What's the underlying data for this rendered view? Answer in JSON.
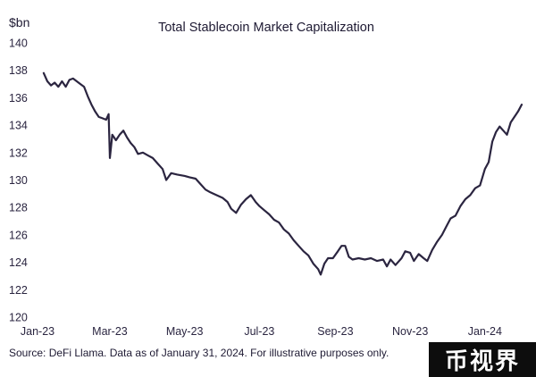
{
  "chart_data": {
    "type": "line",
    "title": "Total Stablecoin Market Capitalization",
    "unit_label": "$bn",
    "ylim": [
      120,
      140
    ],
    "yticks": [
      120,
      122,
      124,
      126,
      128,
      130,
      132,
      134,
      136,
      138,
      140
    ],
    "xticks": [
      "Jan-23",
      "Mar-23",
      "May-23",
      "Jul-23",
      "Sep-23",
      "Nov-23",
      "Jan-24"
    ],
    "xtick_dates": [
      "2023-01-01",
      "2023-03-01",
      "2023-05-01",
      "2023-07-01",
      "2023-09-01",
      "2023-11-01",
      "2024-01-01"
    ],
    "xlim": [
      "2023-01-01",
      "2024-01-31"
    ],
    "grid": false,
    "line_color": "#2b2540",
    "series": [
      {
        "values": [
          [
            "2023-01-06",
            137.8
          ],
          [
            "2023-01-09",
            137.2
          ],
          [
            "2023-01-12",
            136.9
          ],
          [
            "2023-01-15",
            137.1
          ],
          [
            "2023-01-18",
            136.8
          ],
          [
            "2023-01-21",
            137.2
          ],
          [
            "2023-01-24",
            136.8
          ],
          [
            "2023-01-27",
            137.3
          ],
          [
            "2023-01-30",
            137.4
          ],
          [
            "2023-02-02",
            137.2
          ],
          [
            "2023-02-05",
            137.0
          ],
          [
            "2023-02-08",
            136.8
          ],
          [
            "2023-02-11",
            136.1
          ],
          [
            "2023-02-14",
            135.5
          ],
          [
            "2023-02-17",
            135.0
          ],
          [
            "2023-02-20",
            134.6
          ],
          [
            "2023-02-23",
            134.5
          ],
          [
            "2023-02-26",
            134.4
          ],
          [
            "2023-02-28",
            134.8
          ],
          [
            "2023-03-01",
            131.6
          ],
          [
            "2023-03-03",
            133.3
          ],
          [
            "2023-03-06",
            132.9
          ],
          [
            "2023-03-09",
            133.3
          ],
          [
            "2023-03-12",
            133.6
          ],
          [
            "2023-03-15",
            133.1
          ],
          [
            "2023-03-18",
            132.7
          ],
          [
            "2023-03-21",
            132.4
          ],
          [
            "2023-03-24",
            131.9
          ],
          [
            "2023-03-28",
            132.0
          ],
          [
            "2023-04-01",
            131.8
          ],
          [
            "2023-04-05",
            131.6
          ],
          [
            "2023-04-09",
            131.2
          ],
          [
            "2023-04-13",
            130.8
          ],
          [
            "2023-04-16",
            130.0
          ],
          [
            "2023-04-20",
            130.5
          ],
          [
            "2023-04-25",
            130.4
          ],
          [
            "2023-05-01",
            130.3
          ],
          [
            "2023-05-05",
            130.2
          ],
          [
            "2023-05-10",
            130.1
          ],
          [
            "2023-05-14",
            129.7
          ],
          [
            "2023-05-18",
            129.3
          ],
          [
            "2023-05-22",
            129.1
          ],
          [
            "2023-05-27",
            128.9
          ],
          [
            "2023-06-01",
            128.7
          ],
          [
            "2023-06-05",
            128.4
          ],
          [
            "2023-06-08",
            127.9
          ],
          [
            "2023-06-12",
            127.6
          ],
          [
            "2023-06-16",
            128.2
          ],
          [
            "2023-06-20",
            128.6
          ],
          [
            "2023-06-24",
            128.9
          ],
          [
            "2023-06-28",
            128.4
          ],
          [
            "2023-07-01",
            128.1
          ],
          [
            "2023-07-05",
            127.8
          ],
          [
            "2023-07-09",
            127.5
          ],
          [
            "2023-07-13",
            127.1
          ],
          [
            "2023-07-17",
            126.9
          ],
          [
            "2023-07-21",
            126.4
          ],
          [
            "2023-07-25",
            126.1
          ],
          [
            "2023-07-29",
            125.6
          ],
          [
            "2023-08-02",
            125.2
          ],
          [
            "2023-08-06",
            124.8
          ],
          [
            "2023-08-10",
            124.5
          ],
          [
            "2023-08-14",
            123.9
          ],
          [
            "2023-08-18",
            123.5
          ],
          [
            "2023-08-20",
            123.1
          ],
          [
            "2023-08-23",
            123.9
          ],
          [
            "2023-08-26",
            124.3
          ],
          [
            "2023-08-30",
            124.3
          ],
          [
            "2023-09-03",
            124.8
          ],
          [
            "2023-09-06",
            125.2
          ],
          [
            "2023-09-09",
            125.2
          ],
          [
            "2023-09-12",
            124.4
          ],
          [
            "2023-09-15",
            124.2
          ],
          [
            "2023-09-20",
            124.3
          ],
          [
            "2023-09-25",
            124.2
          ],
          [
            "2023-09-30",
            124.3
          ],
          [
            "2023-10-05",
            124.1
          ],
          [
            "2023-10-10",
            124.2
          ],
          [
            "2023-10-13",
            123.7
          ],
          [
            "2023-10-16",
            124.2
          ],
          [
            "2023-10-20",
            123.8
          ],
          [
            "2023-10-25",
            124.3
          ],
          [
            "2023-10-28",
            124.8
          ],
          [
            "2023-11-01",
            124.7
          ],
          [
            "2023-11-04",
            124.1
          ],
          [
            "2023-11-08",
            124.6
          ],
          [
            "2023-11-12",
            124.3
          ],
          [
            "2023-11-15",
            124.1
          ],
          [
            "2023-11-19",
            124.9
          ],
          [
            "2023-11-23",
            125.5
          ],
          [
            "2023-11-27",
            126.0
          ],
          [
            "2023-12-01",
            126.7
          ],
          [
            "2023-12-04",
            127.2
          ],
          [
            "2023-12-08",
            127.4
          ],
          [
            "2023-12-12",
            128.1
          ],
          [
            "2023-12-16",
            128.6
          ],
          [
            "2023-12-20",
            128.9
          ],
          [
            "2023-12-24",
            129.4
          ],
          [
            "2023-12-28",
            129.6
          ],
          [
            "2024-01-01",
            130.8
          ],
          [
            "2024-01-04",
            131.3
          ],
          [
            "2024-01-07",
            132.8
          ],
          [
            "2024-01-10",
            133.5
          ],
          [
            "2024-01-13",
            133.9
          ],
          [
            "2024-01-16",
            133.6
          ],
          [
            "2024-01-19",
            133.3
          ],
          [
            "2024-01-22",
            134.2
          ],
          [
            "2024-01-25",
            134.6
          ],
          [
            "2024-01-28",
            135.0
          ],
          [
            "2024-01-31",
            135.5
          ]
        ]
      }
    ]
  },
  "source_note": "Source: DeFi Llama. Data as of January 31, 2024. For illustrative purposes only.",
  "watermark": "币视界"
}
